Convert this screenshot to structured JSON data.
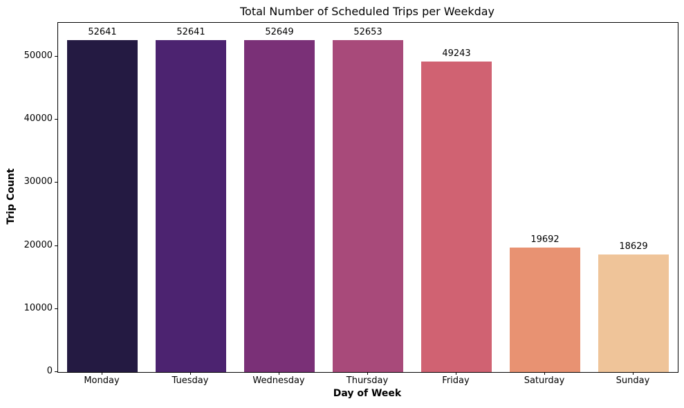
{
  "chart_data": {
    "type": "bar",
    "title": "Total Number of Scheduled Trips per Weekday",
    "xlabel": "Day of Week",
    "ylabel": "Trip Count",
    "categories": [
      "Monday",
      "Tuesday",
      "Wednesday",
      "Thursday",
      "Friday",
      "Saturday",
      "Sunday"
    ],
    "values": [
      52641,
      52641,
      52649,
      52653,
      49243,
      19692,
      18629
    ],
    "bar_colors": [
      "#241a42",
      "#4c2370",
      "#7a3077",
      "#a84a7a",
      "#d06272",
      "#e89272",
      "#efc499"
    ],
    "ytick_labels": [
      "0",
      "10000",
      "20000",
      "30000",
      "40000",
      "50000"
    ],
    "yticks": [
      0,
      10000,
      20000,
      30000,
      40000,
      50000
    ],
    "ylim": [
      0,
      55372
    ],
    "grid": false,
    "legend_position": "none",
    "spine_color": "#000000",
    "background_color": "#ffffff"
  }
}
